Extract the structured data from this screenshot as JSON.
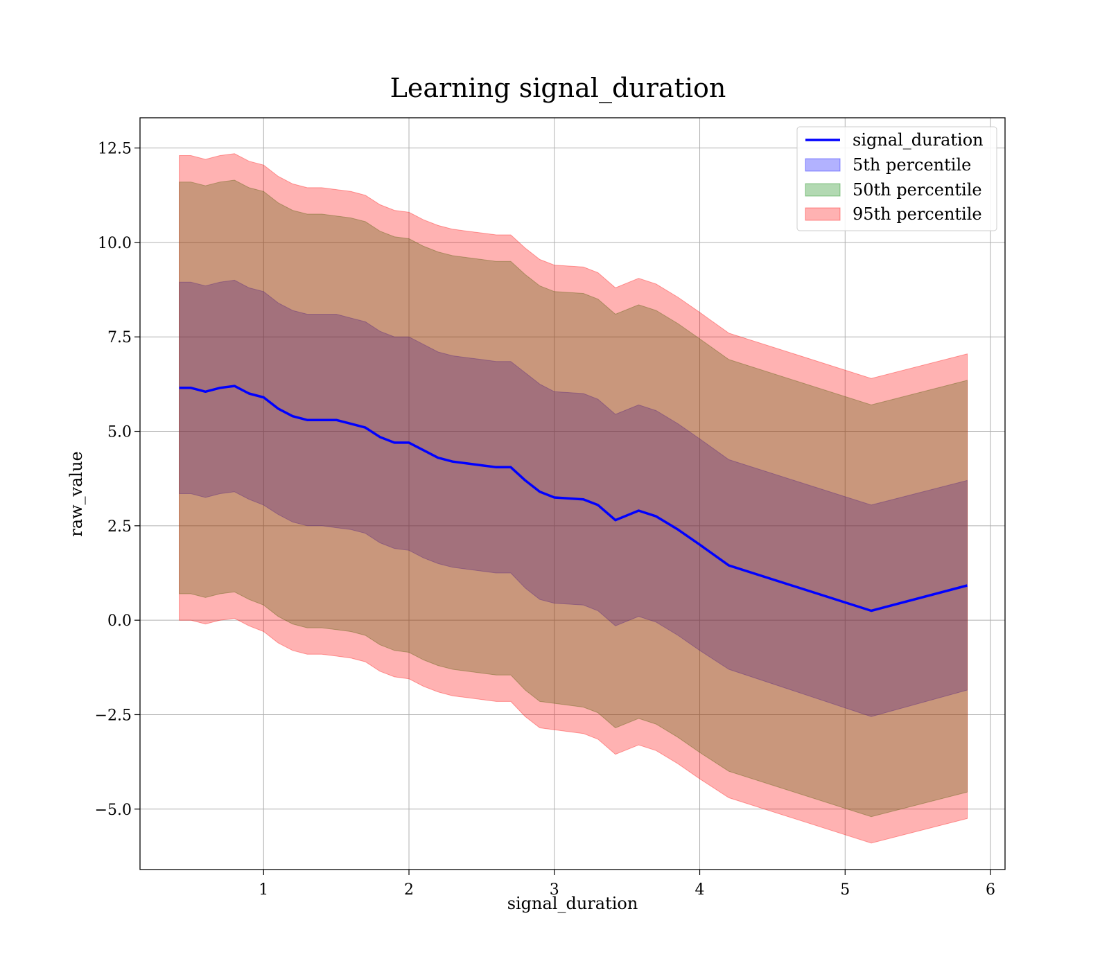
{
  "chart_data": {
    "type": "line",
    "title": "Learning signal_duration",
    "xlabel": "signal_duration",
    "ylabel": "raw_value",
    "xlim": [
      0.15,
      6.1
    ],
    "ylim": [
      -6.6,
      13.3
    ],
    "xticks": [
      1,
      2,
      3,
      4,
      5,
      6
    ],
    "xtick_labels": [
      "1",
      "2",
      "3",
      "4",
      "5",
      "6"
    ],
    "yticks": [
      -5.0,
      -2.5,
      0.0,
      2.5,
      5.0,
      7.5,
      10.0,
      12.5
    ],
    "ytick_labels": [
      "−5.0",
      "−2.5",
      "0.0",
      "2.5",
      "5.0",
      "7.5",
      "10.0",
      "12.5"
    ],
    "grid": true,
    "legend_position": "top-right",
    "x": [
      0.42,
      0.5,
      0.6,
      0.7,
      0.8,
      0.9,
      1.0,
      1.1,
      1.2,
      1.3,
      1.4,
      1.5,
      1.6,
      1.7,
      1.8,
      1.9,
      2.0,
      2.1,
      2.2,
      2.3,
      2.4,
      2.5,
      2.6,
      2.7,
      2.8,
      2.9,
      3.0,
      3.2,
      3.3,
      3.42,
      3.58,
      3.7,
      3.85,
      4.0,
      4.2,
      5.18,
      5.84
    ],
    "series": [
      {
        "name": "signal_duration",
        "color": "#0000ff",
        "values": [
          6.15,
          6.15,
          6.05,
          6.15,
          6.2,
          6.0,
          5.9,
          5.6,
          5.4,
          5.3,
          5.3,
          5.3,
          5.2,
          5.1,
          4.85,
          4.7,
          4.7,
          4.5,
          4.3,
          4.2,
          4.15,
          4.1,
          4.05,
          4.05,
          3.7,
          3.4,
          3.25,
          3.2,
          3.05,
          2.65,
          2.9,
          2.75,
          2.4,
          2.0,
          1.45,
          0.25,
          0.92
        ]
      },
      {
        "name": "5th percentile",
        "color": "#0000ff",
        "lower": [
          3.35,
          3.35,
          3.25,
          3.35,
          3.4,
          3.2,
          3.05,
          2.8,
          2.6,
          2.5,
          2.5,
          2.45,
          2.4,
          2.3,
          2.05,
          1.9,
          1.85,
          1.65,
          1.5,
          1.4,
          1.35,
          1.3,
          1.25,
          1.25,
          0.85,
          0.55,
          0.45,
          0.4,
          0.25,
          -0.15,
          0.1,
          -0.05,
          -0.4,
          -0.8,
          -1.3,
          -2.55,
          -1.85
        ],
        "upper": [
          8.95,
          8.95,
          8.85,
          8.95,
          9.0,
          8.8,
          8.7,
          8.4,
          8.2,
          8.1,
          8.1,
          8.1,
          8.0,
          7.9,
          7.65,
          7.5,
          7.5,
          7.3,
          7.1,
          7.0,
          6.95,
          6.9,
          6.85,
          6.85,
          6.55,
          6.25,
          6.05,
          6.0,
          5.85,
          5.45,
          5.7,
          5.55,
          5.2,
          4.8,
          4.25,
          3.05,
          3.7
        ]
      },
      {
        "name": "50th percentile",
        "color": "#008000",
        "lower": [
          0.7,
          0.7,
          0.6,
          0.7,
          0.75,
          0.55,
          0.4,
          0.1,
          -0.1,
          -0.2,
          -0.2,
          -0.25,
          -0.3,
          -0.4,
          -0.65,
          -0.8,
          -0.85,
          -1.05,
          -1.2,
          -1.3,
          -1.35,
          -1.4,
          -1.45,
          -1.45,
          -1.85,
          -2.15,
          -2.2,
          -2.3,
          -2.45,
          -2.85,
          -2.6,
          -2.75,
          -3.1,
          -3.5,
          -4.0,
          -5.2,
          -4.55
        ],
        "upper": [
          11.6,
          11.6,
          11.5,
          11.6,
          11.65,
          11.45,
          11.35,
          11.05,
          10.85,
          10.75,
          10.75,
          10.7,
          10.65,
          10.55,
          10.3,
          10.15,
          10.1,
          9.9,
          9.75,
          9.65,
          9.6,
          9.55,
          9.5,
          9.5,
          9.15,
          8.85,
          8.7,
          8.65,
          8.5,
          8.1,
          8.35,
          8.2,
          7.85,
          7.45,
          6.9,
          5.7,
          6.35
        ]
      },
      {
        "name": "95th percentile",
        "color": "#ff0000",
        "lower": [
          0.0,
          0.0,
          -0.1,
          0.0,
          0.05,
          -0.15,
          -0.3,
          -0.6,
          -0.8,
          -0.9,
          -0.9,
          -0.95,
          -1.0,
          -1.1,
          -1.35,
          -1.5,
          -1.55,
          -1.75,
          -1.9,
          -2.0,
          -2.05,
          -2.1,
          -2.15,
          -2.15,
          -2.55,
          -2.85,
          -2.9,
          -3.0,
          -3.15,
          -3.55,
          -3.3,
          -3.45,
          -3.8,
          -4.2,
          -4.7,
          -5.9,
          -5.25
        ],
        "upper": [
          12.3,
          12.3,
          12.2,
          12.3,
          12.35,
          12.15,
          12.05,
          11.75,
          11.55,
          11.45,
          11.45,
          11.4,
          11.35,
          11.25,
          11.0,
          10.85,
          10.8,
          10.6,
          10.45,
          10.35,
          10.3,
          10.25,
          10.2,
          10.2,
          9.85,
          9.55,
          9.4,
          9.35,
          9.2,
          8.8,
          9.05,
          8.9,
          8.55,
          8.15,
          7.6,
          6.4,
          7.05
        ]
      }
    ]
  }
}
